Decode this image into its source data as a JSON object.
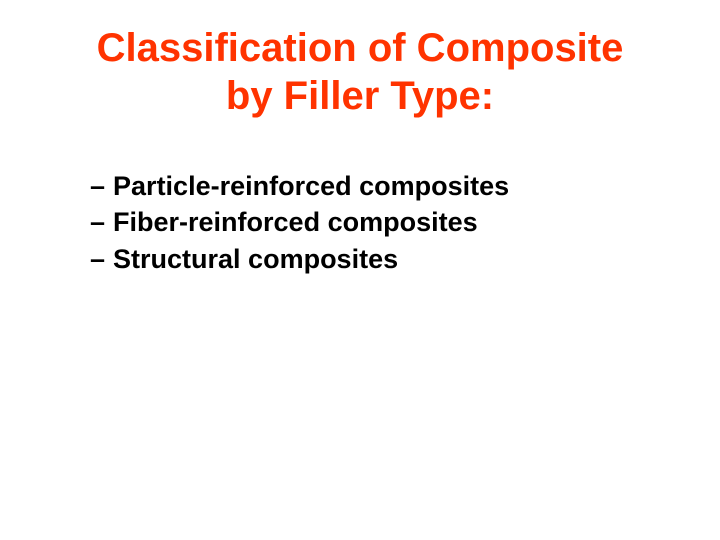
{
  "title_line1": "Classification of Composite",
  "title_line2": "by Filler Type:",
  "bullets": {
    "item1": "Particle-reinforced composites",
    "item2": "Fiber-reinforced composites",
    "item3": "Structural composites"
  },
  "colors": {
    "title_color": "#ff3300",
    "body_color": "#000000",
    "background": "#ffffff"
  },
  "typography": {
    "title_fontsize": 40,
    "body_fontsize": 27,
    "title_weight": "bold",
    "body_weight": "bold",
    "font_family": "Arial"
  }
}
